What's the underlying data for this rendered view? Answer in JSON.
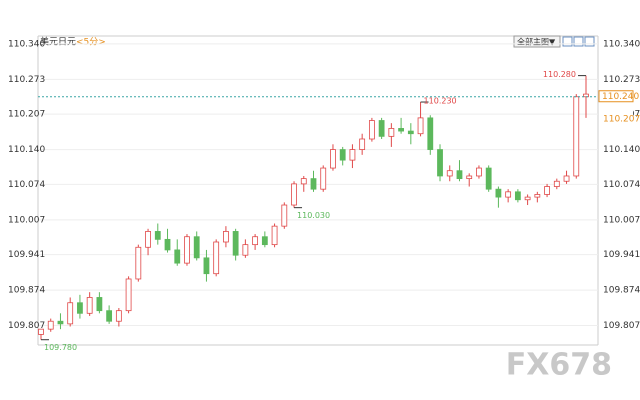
{
  "chart_data": {
    "type": "candlestick",
    "title": "美元日元",
    "subtitle": "<5分>",
    "menu": "全部主图▼",
    "ylim": [
      109.77,
      110.355
    ],
    "yticks": [
      {
        "value": 110.34,
        "label": "110.340"
      },
      110.273,
      110.207,
      {
        "value": 110.14,
        "label": "110.140"
      },
      110.074,
      110.007,
      109.941,
      109.874,
      109.807
    ],
    "grid": true,
    "up_color": "#e04848",
    "down_color": "#5cb85c",
    "open": [
      109.79,
      109.8,
      109.815,
      109.81,
      109.85,
      109.83,
      109.86,
      109.835,
      109.815,
      109.835,
      109.895,
      109.955,
      109.985,
      109.97,
      109.95,
      109.925,
      109.975,
      109.935,
      109.905,
      109.965,
      109.985,
      109.94,
      109.96,
      109.975,
      109.96,
      109.995,
      110.035,
      110.075,
      110.085,
      110.065,
      110.105,
      110.14,
      110.12,
      110.14,
      110.16,
      110.195,
      110.165,
      110.18,
      110.175,
      110.17,
      110.2,
      110.14,
      110.09,
      110.1,
      110.085,
      110.09,
      110.105,
      110.065,
      110.05,
      110.06,
      110.045,
      110.05,
      110.055,
      110.07,
      110.08,
      110.09,
      110.24
    ],
    "high": [
      109.8,
      109.82,
      109.83,
      109.86,
      109.865,
      109.87,
      109.87,
      109.845,
      109.84,
      109.9,
      109.96,
      109.99,
      110.0,
      109.99,
      109.97,
      109.98,
      109.985,
      109.95,
      109.97,
      109.995,
      109.99,
      109.97,
      109.98,
      109.985,
      110.0,
      110.04,
      110.08,
      110.09,
      110.1,
      110.11,
      110.15,
      110.145,
      110.15,
      110.17,
      110.2,
      110.2,
      110.19,
      110.2,
      110.19,
      110.23,
      110.205,
      110.15,
      110.11,
      110.12,
      110.095,
      110.11,
      110.11,
      110.07,
      110.065,
      110.065,
      110.055,
      110.06,
      110.075,
      110.085,
      110.1,
      110.245,
      110.28
    ],
    "low": [
      109.78,
      109.795,
      109.8,
      109.805,
      109.82,
      109.825,
      109.83,
      109.81,
      109.805,
      109.83,
      109.89,
      109.94,
      109.96,
      109.945,
      109.92,
      109.92,
      109.93,
      109.89,
      109.9,
      109.955,
      109.93,
      109.935,
      109.95,
      109.955,
      109.955,
      109.99,
      110.03,
      110.06,
      110.06,
      110.06,
      110.1,
      110.11,
      110.105,
      110.13,
      110.155,
      110.16,
      110.145,
      110.17,
      110.15,
      110.165,
      110.13,
      110.08,
      110.08,
      110.08,
      110.07,
      110.085,
      110.06,
      110.03,
      110.04,
      110.04,
      110.035,
      110.04,
      110.05,
      110.065,
      110.075,
      110.085,
      110.2
    ],
    "close": [
      109.8,
      109.815,
      109.81,
      109.85,
      109.83,
      109.86,
      109.835,
      109.815,
      109.835,
      109.895,
      109.955,
      109.985,
      109.97,
      109.95,
      109.925,
      109.975,
      109.935,
      109.905,
      109.965,
      109.985,
      109.94,
      109.96,
      109.975,
      109.96,
      109.995,
      110.035,
      110.075,
      110.085,
      110.065,
      110.105,
      110.14,
      110.12,
      110.14,
      110.16,
      110.195,
      110.165,
      110.18,
      110.175,
      110.17,
      110.2,
      110.14,
      110.09,
      110.1,
      110.085,
      110.09,
      110.105,
      110.065,
      110.05,
      110.06,
      110.045,
      110.05,
      110.055,
      110.07,
      110.08,
      110.09,
      110.24,
      110.245
    ],
    "annotations": [
      "110.280",
      "110.230",
      "110.030",
      "109.780"
    ],
    "price_tags": [
      {
        "value": 110.24,
        "label": "110.240"
      },
      {
        "value": 110.207,
        "label": "110.207"
      }
    ],
    "watermark": "FX678"
  }
}
